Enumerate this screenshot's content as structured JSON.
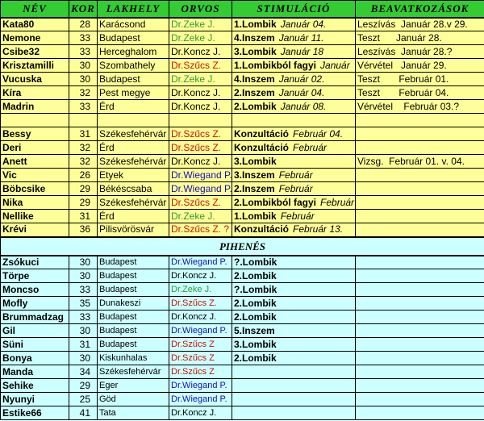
{
  "headers": [
    "NÉV",
    "KOR",
    "LAKHELY",
    "ORVOS",
    "STIMULÁCIÓ",
    "BEAVATKOZÁSOK"
  ],
  "colors": {
    "header_bg": "#33cc33",
    "active_bg": "#ffff99",
    "rest_bg": "#ccffff",
    "doctor_zeke": "#339933",
    "doctor_szucs": "#cc1100",
    "doctor_wiegand": "#1111bb"
  },
  "rows_top": [
    {
      "name": "Kata80",
      "age": "28",
      "city": "Karácsond",
      "doctor": "Dr.Zeke J.",
      "dc": "green",
      "stim": "1.Lombik",
      "date": "Január 04.",
      "beav": "Leszívás  Január 28.v 29."
    },
    {
      "name": "Nemone",
      "age": "33",
      "city": "Budapest",
      "doctor": "Dr.Zeke J.",
      "dc": "green",
      "stim": "4.Inszem",
      "date": "Január 11.",
      "beav": "Teszt      Január 28."
    },
    {
      "name": "Csibe32",
      "age": "33",
      "city": "Herceghalom",
      "doctor": "Dr.Koncz J.",
      "dc": "black",
      "stim": "3.Lombik",
      "date": "Január 18",
      "beav": "Leszívás  Január 28.?"
    },
    {
      "name": "Krisztamilli",
      "age": "30",
      "city": "Szombathely",
      "doctor": "Dr.Szűcs Z.",
      "dc": "red",
      "stim": "1.Lombikból fagyi",
      "date": "Január",
      "beav": "Vérvétel   Január 29."
    },
    {
      "name": "Vucuska",
      "age": "30",
      "city": "Budapest",
      "doctor": "Dr.Zeke J.",
      "dc": "green",
      "stim": "4.Inszem",
      "date": "Január 02.",
      "beav": "Teszt       Február 01."
    },
    {
      "name": "Kíra",
      "age": "32",
      "city": "Pest megye",
      "doctor": "Dr.Koncz J.",
      "dc": "black",
      "stim": "2.Inszem",
      "date": "Január 04.",
      "beav": "Teszt       Február 04."
    },
    {
      "name": "Madrin",
      "age": "33",
      "city": "Érd",
      "doctor": "Dr.Koncz J.",
      "dc": "black",
      "stim": "2.Lombik",
      "date": "Január 08.",
      "beav": "Vérvétel    Február 03.?"
    },
    {
      "name": "",
      "age": "",
      "city": "",
      "doctor": "",
      "dc": "black",
      "stim": "",
      "date": "",
      "beav": ""
    },
    {
      "name": "Bessy",
      "age": "31",
      "city": "Székesfehérvár",
      "doctor": "Dr.Szűcs Z.",
      "dc": "red",
      "stim": "Konzultáció",
      "date": "Február 04.",
      "beav": ""
    },
    {
      "name": "Deri",
      "age": "32",
      "city": "Érd",
      "doctor": "Dr.Szűcs Z.",
      "dc": "red",
      "stim": "Konzultáció",
      "date": "Február",
      "beav": ""
    },
    {
      "name": "Anett",
      "age": "32",
      "city": "Székesfehérvár",
      "doctor": "Dr.Koncz J.",
      "dc": "black",
      "stim": "3.Lombik",
      "date": "",
      "beav": "Vizsg.  Február 01. v. 04."
    },
    {
      "name": "Vic",
      "age": "26",
      "city": "Etyek",
      "doctor": "Dr.Wiegand P.",
      "dc": "blue",
      "stim": "3.Inszem",
      "date": "Február",
      "beav": ""
    },
    {
      "name": "Böbcsike",
      "age": "29",
      "city": "Békéscsaba",
      "doctor": "Dr.Wiegand P.",
      "dc": "blue",
      "stim": "2.Inszem",
      "date": "Február",
      "beav": ""
    },
    {
      "name": "Nika",
      "age": "29",
      "city": "Székesfehérvár",
      "doctor": "Dr.Szűcs Z.",
      "dc": "red",
      "stim": "2.Lombikból fagyi",
      "date": "Február",
      "beav": ""
    },
    {
      "name": "Nellike",
      "age": "31",
      "city": "Érd",
      "doctor": "Dr.Zeke J.",
      "dc": "green",
      "stim": "1.Lombik",
      "date": "Február",
      "beav": ""
    },
    {
      "name": "Krévi",
      "age": "36",
      "city": "Pilisvörösvár",
      "doctor": "Dr.Szűcs Z. ?",
      "dc": "red",
      "stim": "Konzultáció",
      "date": "Február 13.",
      "beav": ""
    }
  ],
  "rest_title": "PIHENÉS",
  "rows_rest": [
    {
      "name": "Zsókuci",
      "age": "30",
      "city": "Budapest",
      "doctor": "Dr.Wiegand P.",
      "dc": "blue",
      "stim": "?.Lombik"
    },
    {
      "name": "Törpe",
      "age": "30",
      "city": "Budapest",
      "doctor": "Dr.Koncz J.",
      "dc": "black",
      "stim": "2.Lombik"
    },
    {
      "name": "Moncso",
      "age": "33",
      "city": "Budapest",
      "doctor": "Dr.Zeke J.",
      "dc": "green",
      "stim": "?.Lombik"
    },
    {
      "name": "Mofly",
      "age": "35",
      "city": "Dunakeszi",
      "doctor": "Dr.Szűcs Z.",
      "dc": "red",
      "stim": "2.Lombik"
    },
    {
      "name": "Brummadzag",
      "age": "33",
      "city": "Budapest",
      "doctor": "Dr.Koncz J.",
      "dc": "black",
      "stim": "2.Lombik"
    },
    {
      "name": "Gil",
      "age": "30",
      "city": "Budapest",
      "doctor": "Dr.Wiegand P.",
      "dc": "blue",
      "stim": "5.Inszem"
    },
    {
      "name": "Süni",
      "age": "31",
      "city": "Budapest",
      "doctor": "Dr.Szűcs Z",
      "dc": "red",
      "stim": "3.Lombik"
    },
    {
      "name": "Bonya",
      "age": "30",
      "city": "Kiskunhalas",
      "doctor": "Dr.Szűcs Z",
      "dc": "red",
      "stim": "2.Lombik"
    },
    {
      "name": "Manda",
      "age": "34",
      "city": "Székesfehérvár",
      "doctor": "Dr.Szűcs Z",
      "dc": "red",
      "stim": ""
    },
    {
      "name": "Sehike",
      "age": "29",
      "city": "Eger",
      "doctor": "Dr.Wiegand P.",
      "dc": "blue",
      "stim": ""
    },
    {
      "name": "Nyunyi",
      "age": "25",
      "city": "Göd",
      "doctor": "Dr.Wiegand P.",
      "dc": "blue",
      "stim": ""
    },
    {
      "name": "Estike66",
      "age": "41",
      "city": "Tata",
      "doctor": "Dr.Koncz J.",
      "dc": "black",
      "stim": ""
    }
  ]
}
